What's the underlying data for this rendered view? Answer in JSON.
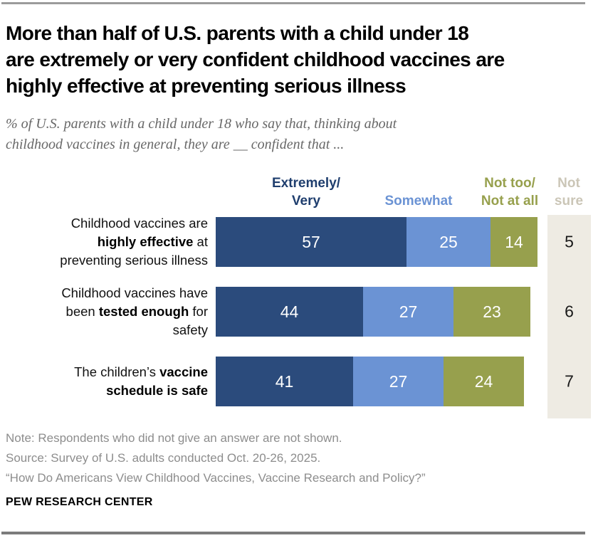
{
  "header": {
    "title_lines": [
      "More than half of U.S. parents with a child under 18",
      "are extremely or very confident childhood vaccines are",
      "highly effective at preventing serious illness"
    ],
    "subtitle_lines": [
      "% of U.S. parents with a child under 18 who say that, thinking about",
      "childhood vaccines in general, they are __ confident that ..."
    ]
  },
  "legend": {
    "extremely": {
      "lines": [
        "Extremely/",
        "Very"
      ],
      "color": "#1f3e6e"
    },
    "somewhat": {
      "lines": [
        "Somewhat"
      ],
      "color": "#6b93d4"
    },
    "not_too": {
      "lines": [
        "Not too/",
        "Not at all"
      ],
      "color": "#97a04d"
    },
    "not_sure": {
      "lines": [
        "Not",
        "sure"
      ],
      "color": "#cbc6b7"
    }
  },
  "chart_data": {
    "type": "bar",
    "stacked": true,
    "orientation": "horizontal",
    "unit": "%",
    "xlim": [
      0,
      100
    ],
    "categories": [
      "Childhood vaccines are highly effective at preventing serious illness",
      "Childhood vaccines have been tested enough for safety",
      "The children’s vaccine schedule is safe"
    ],
    "series": [
      {
        "name": "Extremely/Very",
        "color": "#2b4b7c",
        "values": [
          57,
          44,
          41
        ]
      },
      {
        "name": "Somewhat",
        "color": "#6b93d4",
        "values": [
          25,
          27,
          27
        ]
      },
      {
        "name": "Not too/Not at all",
        "color": "#97a04d",
        "values": [
          14,
          23,
          24
        ]
      }
    ],
    "not_sure": {
      "name": "Not sure",
      "strip_color": "#eeebe3",
      "values": [
        5,
        6,
        7
      ]
    },
    "row_label_lines": [
      [
        [
          {
            "t": "Childhood vaccines are",
            "b": false
          }
        ],
        [
          {
            "t": "highly effective",
            "b": true
          },
          {
            "t": " at",
            "b": false
          }
        ],
        [
          {
            "t": "preventing serious illness",
            "b": false
          }
        ]
      ],
      [
        [
          {
            "t": "Childhood vaccines have",
            "b": false
          }
        ],
        [
          {
            "t": "been ",
            "b": false
          },
          {
            "t": "tested enough",
            "b": true
          },
          {
            "t": " for",
            "b": false
          }
        ],
        [
          {
            "t": "safety",
            "b": false
          }
        ]
      ],
      [
        [
          {
            "t": "The children’s ",
            "b": false
          },
          {
            "t": "vaccine",
            "b": true
          }
        ],
        [
          {
            "t": "schedule is safe",
            "b": true
          }
        ]
      ]
    ]
  },
  "notes": {
    "note": "Note: Respondents who did not give an answer are not shown.",
    "source": "Source: Survey of U.S. adults conducted Oct. 20-26, 2025.",
    "quote": "“How Do Americans View Childhood Vaccines, Vaccine Research and Policy?”"
  },
  "wordmark": "PEW RESEARCH CENTER"
}
